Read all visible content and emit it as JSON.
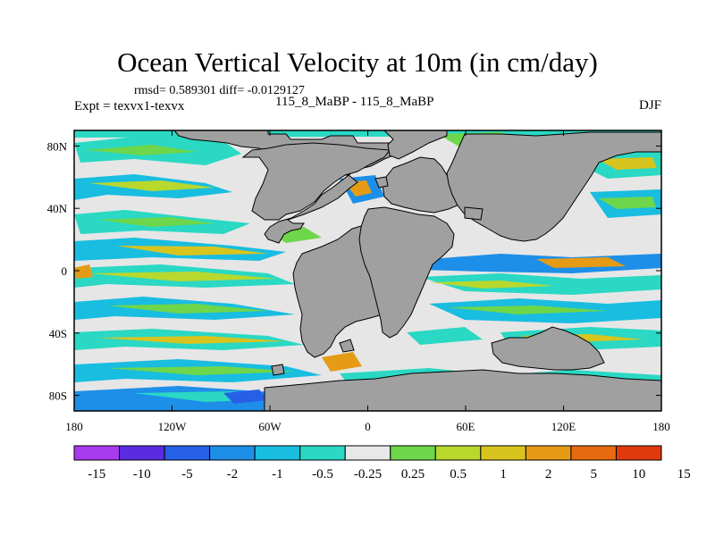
{
  "title": "Ocean Vertical Velocity at 10m (in cm/day)",
  "stats": "rmsd= 0.589301 diff= -0.0129127",
  "expt": "Expt = texvx1-texvx",
  "runs": "115_8_MaBP - 115_8_MaBP",
  "season": "DJF",
  "map": {
    "lon_range": [
      -180,
      180
    ],
    "lat_range": [
      -90,
      90
    ],
    "lat_ticks": [
      {
        "value": 80,
        "label": "80N"
      },
      {
        "value": 40,
        "label": "40N"
      },
      {
        "value": 0,
        "label": "0"
      },
      {
        "value": -40,
        "label": "40S"
      },
      {
        "value": -80,
        "label": "80S"
      }
    ],
    "lon_ticks": [
      {
        "value": -180,
        "label": "180"
      },
      {
        "value": -120,
        "label": "120W"
      },
      {
        "value": -60,
        "label": "60W"
      },
      {
        "value": 0,
        "label": "0"
      },
      {
        "value": 60,
        "label": "60E"
      },
      {
        "value": 120,
        "label": "120E"
      },
      {
        "value": 180,
        "label": "180"
      }
    ],
    "land_color": "#a0a0a0",
    "ocean_color": "#e6e6e6"
  },
  "colorbar": {
    "colors": [
      "#a83af0",
      "#5a2be0",
      "#2660e6",
      "#1d8fe8",
      "#19bde0",
      "#2ad8c4",
      "#e8e8e8",
      "#6ed64a",
      "#b8d82e",
      "#d8c41e",
      "#e69b16",
      "#e86a10",
      "#e03a0c"
    ],
    "labels": [
      "-15",
      "-10",
      "-5",
      "-2",
      "-1",
      "-0.5",
      "-0.25",
      "0.25",
      "0.5",
      "1",
      "2",
      "5",
      "10",
      "15"
    ]
  }
}
